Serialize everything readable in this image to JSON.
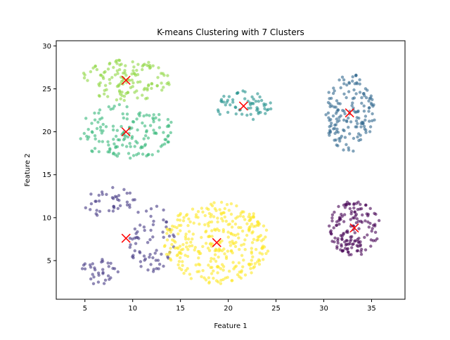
{
  "chart_data": {
    "type": "scatter",
    "title": "K-means Clustering with 7 Clusters",
    "xlabel": "Feature 1",
    "ylabel": "Feature 2",
    "xlim": [
      2,
      38.5
    ],
    "ylim": [
      0.5,
      30.6
    ],
    "xticks": [
      5,
      10,
      15,
      20,
      25,
      30,
      35
    ],
    "yticks": [
      5,
      10,
      15,
      20,
      25,
      30
    ],
    "grid": false,
    "legend": "none",
    "marker_alpha": 0.6,
    "clusters": [
      {
        "color": "#440154",
        "center": [
          33.2,
          8.8
        ],
        "spread": [
          2.7,
          3.2
        ],
        "shape": "ellipse",
        "n": 150
      },
      {
        "color": "#443983",
        "center": [
          9.3,
          7.6
        ],
        "spread": [
          4.5,
          4.5
        ],
        "shape": "groups",
        "n": 140
      },
      {
        "color": "#31688e",
        "center": [
          32.7,
          22.2
        ],
        "spread": [
          2.7,
          4.6
        ],
        "shape": "ellipse",
        "n": 160
      },
      {
        "color": "#21918c",
        "center": [
          21.6,
          23.0
        ],
        "spread": [
          3.0,
          1.8
        ],
        "shape": "ellipse",
        "n": 60
      },
      {
        "color": "#35b779",
        "center": [
          9.3,
          20.0
        ],
        "spread": [
          5.2,
          3.2
        ],
        "shape": "ellipse",
        "n": 150
      },
      {
        "color": "#90d743",
        "center": [
          9.3,
          26.0
        ],
        "spread": [
          4.8,
          2.4
        ],
        "shape": "ellipse",
        "n": 130
      },
      {
        "color": "#fde725",
        "center": [
          18.8,
          7.1
        ],
        "spread": [
          5.5,
          4.8
        ],
        "shape": "ellipse",
        "n": 330
      }
    ],
    "centroids": [
      [
        33.2,
        8.8
      ],
      [
        9.3,
        7.6
      ],
      [
        32.7,
        22.2
      ],
      [
        21.6,
        23.0
      ],
      [
        9.3,
        20.0
      ],
      [
        9.3,
        26.0
      ],
      [
        18.8,
        7.1
      ]
    ],
    "centroid_marker": {
      "shape": "x",
      "color": "#ff0000"
    }
  }
}
